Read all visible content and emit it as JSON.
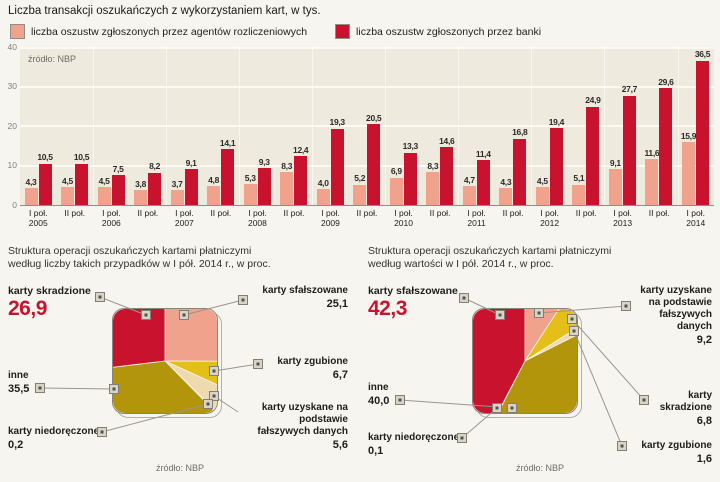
{
  "colors": {
    "salmon": "#f0a28c",
    "red": "#c9132e",
    "gold_dark": "#b3950c",
    "yellow_bright": "#e3bf17",
    "cream": "#efd9ae",
    "white_slice": "#f9f6ee",
    "plot_bg": "#eeeade",
    "page_bg": "#f7f5ef"
  },
  "chart_data": [
    {
      "type": "bar",
      "title": "Liczba transakcji oszukańczych z wykorzystaniem kart, w tys.",
      "source": "źródło: NBP",
      "legend_position": "top",
      "grid": "horizontal white lines every 10",
      "ylim": [
        0,
        40
      ],
      "y_ticks": [
        "40",
        "30",
        "20",
        "10",
        "0"
      ],
      "categories": [
        "I poł. 2005",
        "II poł.",
        "I poł. 2006",
        "II poł.",
        "I poł. 2007",
        "II poł.",
        "I poł. 2008",
        "II poł.",
        "I poł. 2009",
        "II poł.",
        "I poł. 2010",
        "II poł.",
        "I poł. 2011",
        "II poł.",
        "I poł. 2012",
        "II poł.",
        "I poł. 2013",
        "II poł.",
        "I poł. 2014"
      ],
      "series": [
        {
          "name": "liczba oszustw zgłoszonych przez agentów rozliczeniowych",
          "color": "#f0a28c",
          "values": [
            4.3,
            4.5,
            4.5,
            3.8,
            3.7,
            4.8,
            5.3,
            8.3,
            4.0,
            5.2,
            6.9,
            8.3,
            4.7,
            4.3,
            4.5,
            5.1,
            9.1,
            11.6,
            15.9
          ]
        },
        {
          "name": "liczba oszustw zgłoszonych przez banki",
          "color": "#c9132e",
          "values": [
            10.5,
            10.5,
            7.5,
            8.2,
            9.1,
            14.1,
            9.3,
            12.4,
            19.3,
            20.5,
            13.3,
            14.6,
            11.4,
            16.8,
            19.4,
            24.9,
            27.7,
            29.6,
            36.5
          ]
        }
      ]
    },
    {
      "type": "pie",
      "title_line1": "Struktura operacji oszukańczych kartami płatniczymi",
      "title_line2": "według liczby takich przypadków w I pół. 2014 r., w proc.",
      "source": "źródło: NBP",
      "slices": [
        {
          "label": "karty sfałszowane",
          "value": 25.1,
          "display": "25,1",
          "color": "#f0a28c"
        },
        {
          "label": "karty zgubione",
          "value": 6.7,
          "display": "6,7",
          "color": "#e3bf17"
        },
        {
          "label": "karty uzyskane na podstawie fałszywych danych",
          "value": 5.6,
          "display": "5,6",
          "color": "#efd9ae"
        },
        {
          "label": "karty niedoręczone",
          "value": 0.2,
          "display": "0,2",
          "color": "#f9f6ee"
        },
        {
          "label": "inne",
          "value": 35.5,
          "display": "35,5",
          "color": "#b3950c"
        },
        {
          "label": "karty skradzione",
          "value": 26.9,
          "display": "26,9",
          "color": "#c9132e"
        }
      ]
    },
    {
      "type": "pie",
      "title_line1": "Struktura operacji oszukańczych kartami płatniczymi",
      "title_line2": "według wartości w I pół. 2014 r., w proc.",
      "source": "źródło: NBP",
      "slices": [
        {
          "label": "karty uzyskane na podstawie fałszywych danych",
          "value": 9.2,
          "display": "9,2",
          "color": "#f0a28c"
        },
        {
          "label": "karty skradzione",
          "value": 6.8,
          "display": "6,8",
          "color": "#e3bf17"
        },
        {
          "label": "karty zgubione",
          "value": 1.6,
          "display": "1,6",
          "color": "#efd9ae"
        },
        {
          "label": "inne",
          "value": 40.0,
          "display": "40,0",
          "color": "#b3950c"
        },
        {
          "label": "karty niedoręczone",
          "value": 0.1,
          "display": "0,1",
          "color": "#f9f6ee"
        },
        {
          "label": "karty sfałszowane",
          "value": 42.3,
          "display": "42,3",
          "color": "#c9132e"
        }
      ]
    }
  ]
}
